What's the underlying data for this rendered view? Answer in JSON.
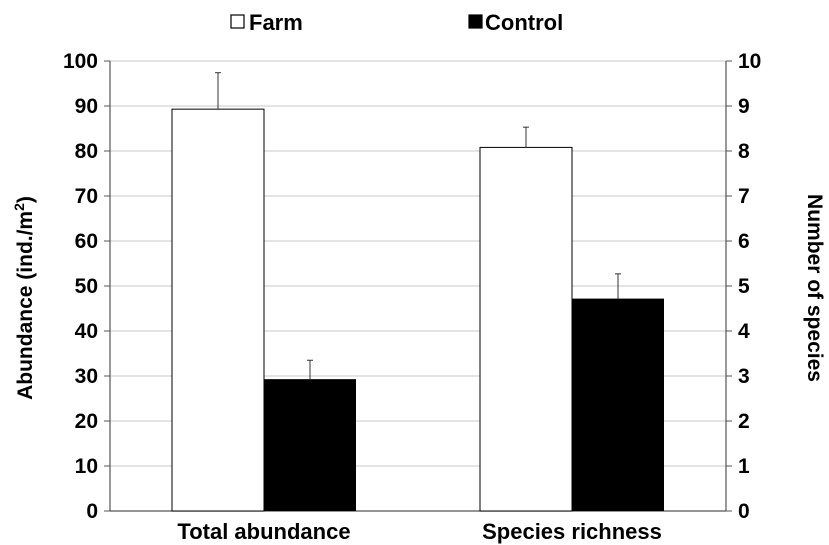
{
  "chart_data": {
    "type": "bar",
    "categories": [
      "Total abundance",
      "Species richness"
    ],
    "series": [
      {
        "name": "Farm",
        "color": "#ffffff",
        "values": [
          89.3,
          8.08
        ],
        "errors": [
          8.1,
          0.45
        ],
        "axis": [
          "left",
          "right"
        ]
      },
      {
        "name": "Control",
        "color": "#000000",
        "values": [
          29.3,
          4.72
        ],
        "errors": [
          4.2,
          0.55
        ],
        "axis": [
          "left",
          "right"
        ]
      }
    ],
    "ylabel": "Abundance (ind./m",
    "ylabel_superscript": "2",
    "ylabel_suffix": ")",
    "ylim": [
      0,
      100
    ],
    "yticks": [
      0,
      10,
      20,
      30,
      40,
      50,
      60,
      70,
      80,
      90,
      100
    ],
    "y2label": "Number of species",
    "y2lim": [
      0,
      10
    ],
    "y2ticks": [
      0,
      1,
      2,
      3,
      4,
      5,
      6,
      7,
      8,
      9,
      10
    ],
    "legend_position": "top-center",
    "grid": true
  }
}
